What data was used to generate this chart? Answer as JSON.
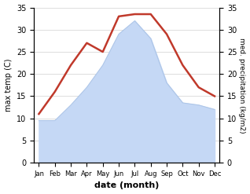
{
  "months": [
    "Jan",
    "Feb",
    "Mar",
    "Apr",
    "May",
    "Jun",
    "Jul",
    "Aug",
    "Sep",
    "Oct",
    "Nov",
    "Dec"
  ],
  "max_temp": [
    11.0,
    16.0,
    22.0,
    27.0,
    25.0,
    33.0,
    33.5,
    33.5,
    29.0,
    22.0,
    17.0,
    15.0
  ],
  "precipitation": [
    9.5,
    9.5,
    13.0,
    17.0,
    22.0,
    29.0,
    32.0,
    28.0,
    18.0,
    13.5,
    13.0,
    12.0
  ],
  "temp_color": "#c0392b",
  "precip_fill_color": "#c5d8f5",
  "precip_edge_color": "#aec6e8",
  "ylim": [
    0,
    35
  ],
  "xlabel": "date (month)",
  "ylabel_left": "max temp (C)",
  "ylabel_right": "med. precipitation (kg/m2)",
  "background_color": "#ffffff",
  "grid_color": "#d0d0d0",
  "yticks": [
    0,
    5,
    10,
    15,
    20,
    25,
    30,
    35
  ]
}
